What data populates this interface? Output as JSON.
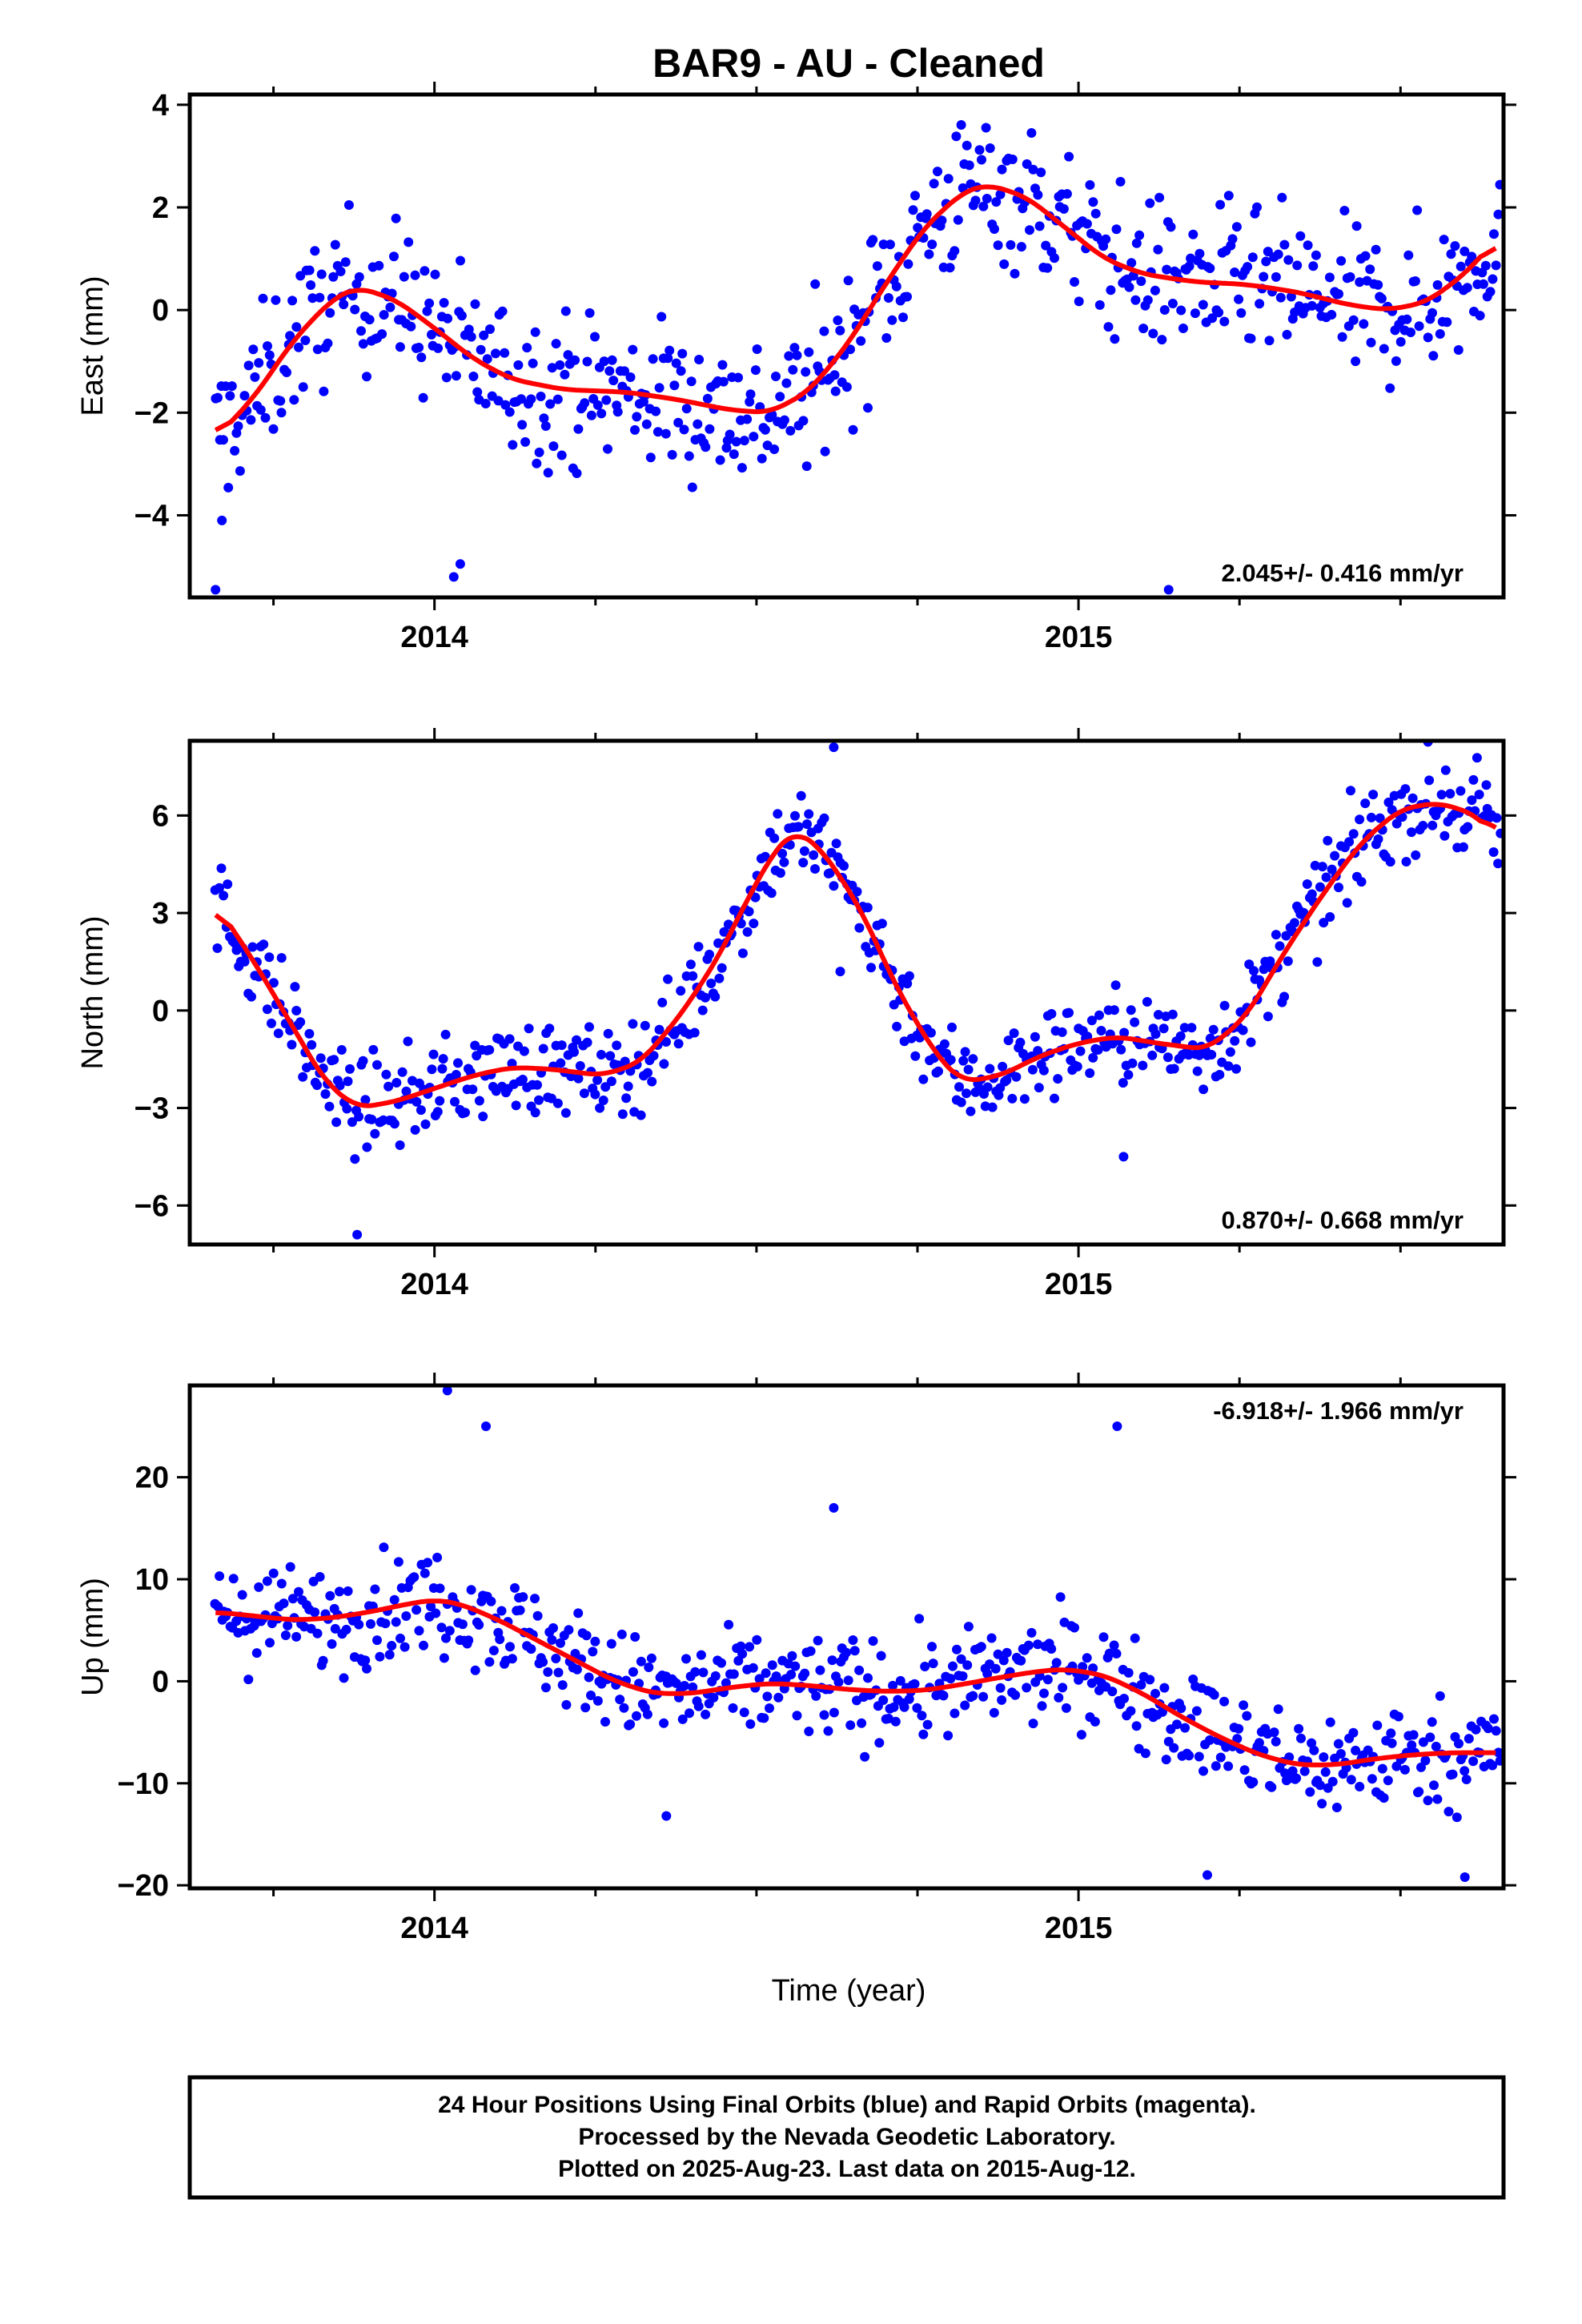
{
  "title": "BAR9  - AU - Cleaned",
  "xlabel": "Time (year)",
  "footer_lines": [
    "24 Hour Positions Using Final Orbits (blue) and Rapid Orbits (magenta).",
    "Processed by the Nevada Geodetic Laboratory.",
    "Plotted on 2025-Aug-23. Last data on 2015-Aug-12."
  ],
  "colors": {
    "points": "#0000ff",
    "fit": "#ff0000",
    "frame": "#000000"
  },
  "chart_data": [
    {
      "type": "scatter",
      "ylabel": "East (mm)",
      "rate": "2.045+/- 0.416 mm/yr",
      "rate_position": "bottom-right",
      "xlim": [
        2013.62,
        2015.66
      ],
      "ylim": [
        -5.6,
        4.2
      ],
      "yticks": [
        4,
        2,
        0,
        -2,
        -4
      ],
      "ytick_labels": [
        "4",
        "2",
        "0",
        "−2",
        "−4"
      ],
      "xticks": [
        2014,
        2015
      ],
      "xtick_labels": [
        "2014",
        "2015"
      ],
      "series": [
        {
          "kind": "points",
          "color": "#0000ff",
          "amplitude": 1.05,
          "outliers": [
            [
              2013.66,
              -5.45
            ],
            [
              2013.67,
              -4.1
            ],
            [
              2014.03,
              -5.2
            ],
            [
              2014.04,
              -4.95
            ],
            [
              2015.14,
              -5.45
            ]
          ]
        },
        {
          "kind": "fit_line",
          "color": "#ff0000",
          "points": [
            [
              2013.66,
              -2.5
            ],
            [
              2013.72,
              -1.7
            ],
            [
              2013.78,
              -0.6
            ],
            [
              2013.84,
              0.2
            ],
            [
              2013.88,
              0.45
            ],
            [
              2013.94,
              0.2
            ],
            [
              2014.0,
              -0.35
            ],
            [
              2014.06,
              -0.95
            ],
            [
              2014.12,
              -1.35
            ],
            [
              2014.2,
              -1.55
            ],
            [
              2014.3,
              -1.6
            ],
            [
              2014.38,
              -1.75
            ],
            [
              2014.46,
              -1.95
            ],
            [
              2014.52,
              -2.0
            ],
            [
              2014.58,
              -1.6
            ],
            [
              2014.64,
              -0.7
            ],
            [
              2014.7,
              0.5
            ],
            [
              2014.76,
              1.6
            ],
            [
              2014.82,
              2.3
            ],
            [
              2014.86,
              2.45
            ],
            [
              2014.92,
              2.2
            ],
            [
              2014.98,
              1.6
            ],
            [
              2015.04,
              1.0
            ],
            [
              2015.1,
              0.7
            ],
            [
              2015.18,
              0.55
            ],
            [
              2015.26,
              0.5
            ],
            [
              2015.34,
              0.35
            ],
            [
              2015.42,
              0.1
            ],
            [
              2015.48,
              0.0
            ],
            [
              2015.54,
              0.15
            ],
            [
              2015.6,
              0.7
            ],
            [
              2015.65,
              1.4
            ]
          ]
        }
      ]
    },
    {
      "type": "scatter",
      "ylabel": "North (mm)",
      "rate": "0.870+/- 0.668 mm/yr",
      "rate_position": "bottom-right",
      "xlim": [
        2013.62,
        2015.66
      ],
      "ylim": [
        -7.2,
        8.3
      ],
      "yticks": [
        6,
        3,
        0,
        -3,
        -6
      ],
      "ytick_labels": [
        "6",
        "3",
        "0",
        "−3",
        "−6"
      ],
      "xticks": [
        2014,
        2015
      ],
      "xtick_labels": [
        "2014",
        "2015"
      ],
      "series": [
        {
          "kind": "points",
          "color": "#0000ff",
          "amplitude": 1.0,
          "outliers": [
            [
              2013.88,
              -6.9
            ],
            [
              2014.62,
              8.1
            ],
            [
              2015.07,
              -4.5
            ],
            [
              2014.63,
              1.2
            ]
          ]
        },
        {
          "kind": "fit_line",
          "color": "#ff0000",
          "points": [
            [
              2013.66,
              3.3
            ],
            [
              2013.72,
              1.5
            ],
            [
              2013.78,
              -0.5
            ],
            [
              2013.83,
              -2.2
            ],
            [
              2013.88,
              -3.0
            ],
            [
              2013.94,
              -2.8
            ],
            [
              2014.0,
              -2.4
            ],
            [
              2014.06,
              -2.0
            ],
            [
              2014.12,
              -1.75
            ],
            [
              2014.18,
              -1.8
            ],
            [
              2014.26,
              -2.0
            ],
            [
              2014.32,
              -1.6
            ],
            [
              2014.38,
              -0.2
            ],
            [
              2014.44,
              1.6
            ],
            [
              2014.48,
              3.2
            ],
            [
              2014.53,
              5.0
            ],
            [
              2014.56,
              5.55
            ],
            [
              2014.6,
              5.0
            ],
            [
              2014.66,
              3.2
            ],
            [
              2014.72,
              0.6
            ],
            [
              2014.78,
              -1.4
            ],
            [
              2014.82,
              -2.2
            ],
            [
              2014.88,
              -2.0
            ],
            [
              2014.94,
              -1.4
            ],
            [
              2015.0,
              -1.0
            ],
            [
              2015.06,
              -0.8
            ],
            [
              2015.12,
              -1.0
            ],
            [
              2015.2,
              -1.2
            ],
            [
              2015.26,
              -0.2
            ],
            [
              2015.32,
              1.8
            ],
            [
              2015.38,
              3.6
            ],
            [
              2015.44,
              5.2
            ],
            [
              2015.5,
              6.2
            ],
            [
              2015.56,
              6.4
            ],
            [
              2015.62,
              6.0
            ],
            [
              2015.65,
              5.3
            ]
          ]
        }
      ]
    },
    {
      "type": "scatter",
      "ylabel": "Up (mm)",
      "rate": "-6.918+/- 1.966 mm/yr",
      "rate_position": "top-right",
      "xlim": [
        2013.62,
        2015.66
      ],
      "ylim": [
        -20.3,
        29.0
      ],
      "yticks": [
        20,
        10,
        0,
        -10,
        -20
      ],
      "ytick_labels": [
        "20",
        "10",
        "0",
        "−10",
        "−20"
      ],
      "xticks": [
        2014,
        2015
      ],
      "xtick_labels": [
        "2014",
        "2015"
      ],
      "series": [
        {
          "kind": "points",
          "color": "#0000ff",
          "amplitude": 3.6,
          "outliers": [
            [
              2014.02,
              28.5
            ],
            [
              2014.08,
              25.0
            ],
            [
              2015.06,
              25.0
            ],
            [
              2014.62,
              17.0
            ],
            [
              2015.2,
              -19.0
            ],
            [
              2015.6,
              -19.2
            ],
            [
              2014.36,
              -13.2
            ]
          ]
        },
        {
          "kind": "fit_line",
          "color": "#ff0000",
          "points": [
            [
              2013.66,
              6.8
            ],
            [
              2013.72,
              6.4
            ],
            [
              2013.78,
              6.0
            ],
            [
              2013.84,
              6.2
            ],
            [
              2013.9,
              6.8
            ],
            [
              2013.96,
              7.6
            ],
            [
              2014.0,
              8.0
            ],
            [
              2014.04,
              7.6
            ],
            [
              2014.1,
              6.0
            ],
            [
              2014.16,
              4.0
            ],
            [
              2014.22,
              2.0
            ],
            [
              2014.28,
              0.0
            ],
            [
              2014.34,
              -1.2
            ],
            [
              2014.4,
              -1.2
            ],
            [
              2014.46,
              -0.6
            ],
            [
              2014.52,
              -0.2
            ],
            [
              2014.58,
              -0.4
            ],
            [
              2014.64,
              -0.8
            ],
            [
              2014.7,
              -1.0
            ],
            [
              2014.76,
              -0.9
            ],
            [
              2014.82,
              -0.3
            ],
            [
              2014.88,
              0.4
            ],
            [
              2014.94,
              1.0
            ],
            [
              2014.98,
              1.2
            ],
            [
              2015.04,
              0.6
            ],
            [
              2015.1,
              -1.2
            ],
            [
              2015.16,
              -3.5
            ],
            [
              2015.22,
              -5.5
            ],
            [
              2015.28,
              -7.2
            ],
            [
              2015.34,
              -8.2
            ],
            [
              2015.4,
              -8.2
            ],
            [
              2015.46,
              -7.6
            ],
            [
              2015.52,
              -7.2
            ],
            [
              2015.58,
              -7.0
            ],
            [
              2015.65,
              -7.0
            ]
          ]
        }
      ]
    }
  ]
}
